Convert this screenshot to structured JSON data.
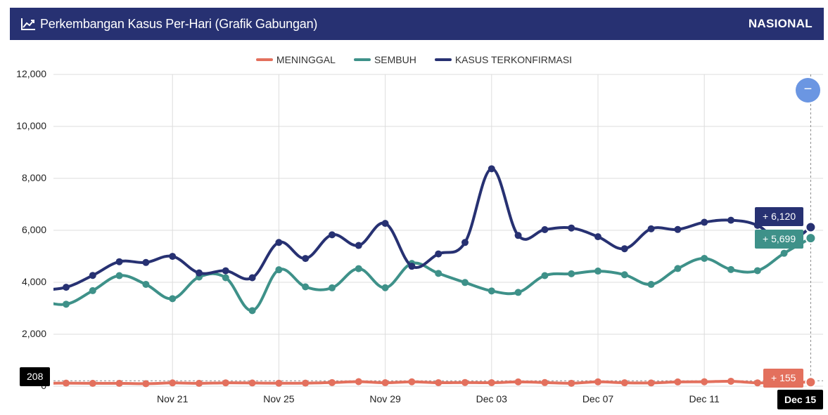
{
  "header": {
    "title": "Perkembangan Kasus Per-Hari (Grafik Gabungan)",
    "region": "NASIONAL",
    "icon": "line-chart-icon"
  },
  "zoom": {
    "label": "−",
    "icon": "minus-icon"
  },
  "tooltips": {
    "confirmed": "+ 6,120",
    "recovered": "+ 5,699",
    "deaths": "+ 155",
    "y_value": "208",
    "x_value": "Dec 15"
  },
  "chart_data": {
    "type": "line",
    "x": [
      "Nov 17",
      "Nov 18",
      "Nov 19",
      "Nov 20",
      "Nov 21",
      "Nov 22",
      "Nov 23",
      "Nov 24",
      "Nov 25",
      "Nov 26",
      "Nov 27",
      "Nov 28",
      "Nov 29",
      "Nov 30",
      "Dec 01",
      "Dec 02",
      "Dec 03",
      "Dec 04",
      "Dec 05",
      "Dec 06",
      "Dec 07",
      "Dec 08",
      "Dec 09",
      "Dec 10",
      "Dec 11",
      "Dec 12",
      "Dec 13",
      "Dec 14",
      "Dec 15"
    ],
    "x_ticks": [
      "Nov 21",
      "Nov 25",
      "Nov 29",
      "Dec 03",
      "Dec 07",
      "Dec 11"
    ],
    "y_ticks": [
      "0",
      "2,000",
      "4,000",
      "6,000",
      "8,000",
      "10,000",
      "12,000"
    ],
    "ylim": [
      0,
      12000
    ],
    "grid": true,
    "legend_position": "top-center",
    "series": [
      {
        "name": "MENINGGAL",
        "color": "#e3705d",
        "values": [
          118,
          110,
          110,
          97,
          128,
          110,
          130,
          125,
          116,
          118,
          140,
          175,
          134,
          169,
          136,
          143,
          135,
          165,
          141,
          113,
          168,
          133,
          126,
          164,
          171,
          190,
          130,
          150,
          155
        ]
      },
      {
        "name": "SEMBUH",
        "color": "#3e9189",
        "values": [
          3157,
          3678,
          4256,
          3920,
          3369,
          4202,
          4175,
          2910,
          4482,
          3825,
          3786,
          4525,
          3790,
          4725,
          4342,
          3992,
          3667,
          3610,
          4257,
          4328,
          4431,
          4291,
          3918,
          4529,
          4920,
          4491,
          4447,
          5117,
          5699
        ]
      },
      {
        "name": "KASUS TERKONFIRMASI",
        "color": "#273172",
        "values": [
          3807,
          4265,
          4792,
          4762,
          4998,
          4360,
          4442,
          4176,
          5534,
          4917,
          5828,
          5418,
          6267,
          4617,
          5092,
          5533,
          8369,
          5803,
          6027,
          6089,
          5754,
          5292,
          6058,
          6033,
          6310,
          6388,
          6189,
          5489,
          6120
        ]
      }
    ]
  }
}
